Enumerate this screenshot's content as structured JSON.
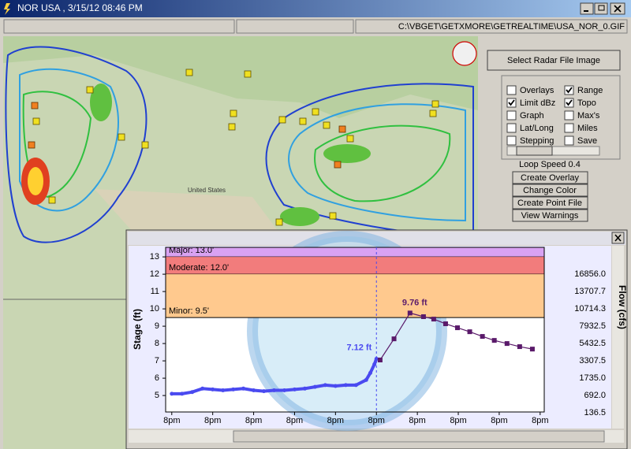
{
  "window": {
    "title": "NOR USA ,  3/15/12 08:46 PM",
    "file_path": "C:\\VBGET\\GETXMORE\\GETREALTIME\\USA_NOR_0.GIF"
  },
  "map": {
    "labels": [
      "United States"
    ]
  },
  "panel": {
    "select_button": "Select Radar File Image",
    "options": [
      {
        "label": "Overlays",
        "checked": false
      },
      {
        "label": "Range",
        "checked": true
      },
      {
        "label": "Limit dBz",
        "checked": true
      },
      {
        "label": "Topo",
        "checked": true
      },
      {
        "label": "Graph",
        "checked": false
      },
      {
        "label": "Max's",
        "checked": false
      },
      {
        "label": "Lat/Long",
        "checked": false
      },
      {
        "label": "Miles",
        "checked": false
      },
      {
        "label": "Stepping",
        "checked": false
      },
      {
        "label": "Save",
        "checked": false
      }
    ],
    "loop_speed": "Loop Speed 0.4",
    "buttons": [
      "Create Overlay",
      "Change Color",
      "Create Point File",
      "View Warnings"
    ]
  },
  "chart_data": {
    "type": "line",
    "y_label": "Stage (ft)",
    "y2_label": "Flow (cfs)",
    "xlim": [
      -0.15,
      9.1
    ],
    "xticks": [
      {
        "value": 0,
        "label": "8pm"
      },
      {
        "value": 1,
        "label": "8pm"
      },
      {
        "value": 2,
        "label": "8pm"
      },
      {
        "value": 3,
        "label": "8pm"
      },
      {
        "value": 4,
        "label": "8pm"
      },
      {
        "value": 5,
        "label": "8pm"
      },
      {
        "value": 6,
        "label": "8pm"
      },
      {
        "value": 7,
        "label": "8pm"
      },
      {
        "value": 8,
        "label": "8pm"
      },
      {
        "value": 9,
        "label": "8pm"
      }
    ],
    "ylim": [
      4.05,
      13.55
    ],
    "yticks": [
      5,
      6,
      7,
      8,
      9,
      10,
      11,
      12,
      13
    ],
    "y2ticks": [
      {
        "value": 136.5,
        "label": "136.5"
      },
      {
        "value": 692,
        "label": "692.0"
      },
      {
        "value": 1735,
        "label": "1735.0"
      },
      {
        "value": 3307.5,
        "label": "3307.5"
      },
      {
        "value": 5432.5,
        "label": "5432.5"
      },
      {
        "value": 7932.5,
        "label": "7932.5"
      },
      {
        "value": 10714.3,
        "label": "10714.3"
      },
      {
        "value": 13707.7,
        "label": "13707.7"
      },
      {
        "value": 16856,
        "label": "16856.0"
      }
    ],
    "grid": false,
    "flood_levels": [
      {
        "label": "Major: 13.0'",
        "value": 13,
        "color": "#d9a2f2"
      },
      {
        "label": "Moderate: 12.0'",
        "value": 12,
        "color": "#f27c7c"
      },
      {
        "label": "Minor: 9.5'",
        "value": 9.5,
        "color": "#ffc98e"
      }
    ],
    "series": [
      {
        "color": "#4a4af0",
        "x": [
          0,
          0.25,
          0.5,
          0.75,
          1,
          1.25,
          1.5,
          1.75,
          2,
          2.25,
          2.5,
          2.75,
          3,
          3.25,
          3.5,
          3.75,
          4,
          4.25,
          4.5,
          4.75,
          4.85,
          4.95,
          5.0
        ],
        "values": [
          5.1,
          5.1,
          5.2,
          5.4,
          5.35,
          5.3,
          5.35,
          5.4,
          5.3,
          5.25,
          5.3,
          5.3,
          5.35,
          5.4,
          5.5,
          5.6,
          5.55,
          5.6,
          5.6,
          5.9,
          6.3,
          6.8,
          7.12
        ]
      },
      {
        "color": "#5a1a6a",
        "x": [
          5.09,
          5.43,
          5.82,
          6.15,
          6.4,
          6.69,
          6.98,
          7.28,
          7.59,
          7.88,
          8.19,
          8.5,
          8.81
        ],
        "values": [
          7.05,
          8.27,
          9.76,
          9.55,
          9.41,
          9.14,
          8.91,
          8.68,
          8.41,
          8.18,
          8.0,
          7.82,
          7.68
        ]
      }
    ],
    "annotations": [
      "7.12 ft",
      "9.76 ft"
    ]
  }
}
